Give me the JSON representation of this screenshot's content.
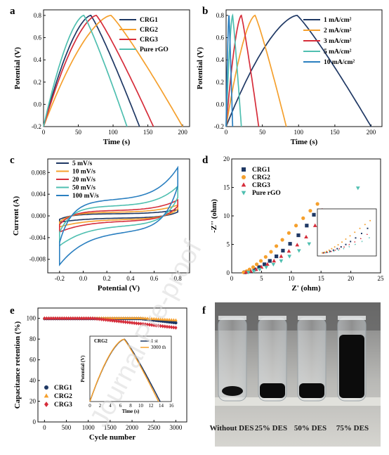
{
  "watermark": "Journal Pre-proof",
  "chart_data": [
    {
      "panel": "a",
      "type": "line",
      "xlabel": "Time (s)",
      "ylabel": "Potential (V)",
      "xlim": [
        0,
        210
      ],
      "ylim": [
        -0.2,
        0.85
      ],
      "xticks": [
        0,
        50,
        100,
        150,
        200
      ],
      "yticks": [
        -0.2,
        0.0,
        0.2,
        0.4,
        0.6,
        0.8
      ],
      "legend_position": "top-right",
      "series": [
        {
          "name": "CRG1",
          "color": "#1f3864",
          "charge_end": 68,
          "discharge_end": 138
        },
        {
          "name": "CRG2",
          "color": "#f5a02d",
          "charge_end": 97,
          "discharge_end": 200
        },
        {
          "name": "CRG3",
          "color": "#d62d3a",
          "charge_end": 76,
          "discharge_end": 158
        },
        {
          "name": "Pure rGO",
          "color": "#4fbfb0",
          "charge_end": 58,
          "discharge_end": 120
        }
      ]
    },
    {
      "panel": "b",
      "type": "line",
      "xlabel": "Time (s)",
      "ylabel": "Potential (V)",
      "xlim": [
        0,
        215
      ],
      "ylim": [
        -0.2,
        0.85
      ],
      "xticks": [
        0,
        50,
        100,
        150,
        200
      ],
      "yticks": [
        -0.2,
        0.0,
        0.2,
        0.4,
        0.6,
        0.8
      ],
      "legend_position": "top-right",
      "series": [
        {
          "name": "1 mA/cm²",
          "color": "#1f3864",
          "charge_end": 98,
          "discharge_end": 200
        },
        {
          "name": "2 mA/cm²",
          "color": "#f5a02d",
          "charge_end": 40,
          "discharge_end": 83
        },
        {
          "name": "3 mA/cm²",
          "color": "#d62d3a",
          "charge_end": 21,
          "discharge_end": 45
        },
        {
          "name": "5 mA/cm²",
          "color": "#4fbfb0",
          "charge_end": 9,
          "discharge_end": 21
        },
        {
          "name": "10 mA/cm²",
          "color": "#2a7fc0",
          "charge_end": 4,
          "discharge_end": 9
        }
      ]
    },
    {
      "panel": "c",
      "type": "line",
      "xlabel": "Potential (V)",
      "ylabel": "Current (A)",
      "xlim": [
        -0.3,
        0.9
      ],
      "ylim": [
        -0.0105,
        0.0105
      ],
      "xticks": [
        -0.2,
        0.0,
        0.2,
        0.4,
        0.6,
        0.8
      ],
      "yticks": [
        -0.008,
        -0.004,
        0.0,
        0.004,
        0.008
      ],
      "legend_position": "top-left",
      "series": [
        {
          "name": "5 mV/s",
          "color": "#1f3864",
          "i_max": 0.0011
        },
        {
          "name": "10 mV/s",
          "color": "#f5a02d",
          "i_max": 0.0019
        },
        {
          "name": "20 mV/s",
          "color": "#d62d3a",
          "i_max": 0.0028
        },
        {
          "name": "50 mV/s",
          "color": "#4fbfb0",
          "i_max": 0.0052
        },
        {
          "name": "100 mV/s",
          "color": "#2a7fc0",
          "i_max": 0.0085
        }
      ]
    },
    {
      "panel": "d",
      "type": "scatter",
      "xlabel": "Z' (ohm)",
      "ylabel": "-Z'' (ohm)",
      "xlim": [
        0,
        25
      ],
      "ylim": [
        0,
        20
      ],
      "xticks": [
        0,
        5,
        10,
        15,
        20,
        25
      ],
      "yticks": [
        0,
        5,
        10,
        15,
        20
      ],
      "legend_position": "top-left",
      "series": [
        {
          "name": "CRG1",
          "color": "#1f3864",
          "marker": "square",
          "x": [
            2.2,
            3.0,
            3.8,
            4.6,
            5.5,
            6.4,
            7.5,
            8.6,
            9.8,
            11.2,
            12.6,
            13.8
          ],
          "y": [
            0.1,
            0.3,
            0.6,
            1.0,
            1.5,
            2.1,
            2.9,
            3.9,
            5.1,
            6.6,
            8.3,
            10.2
          ]
        },
        {
          "name": "CRG2",
          "color": "#f5a02d",
          "marker": "circle",
          "x": [
            2.0,
            2.5,
            3.0,
            3.6,
            4.2,
            4.9,
            5.7,
            6.6,
            7.5,
            8.5,
            9.6,
            10.8,
            12.0,
            13.2,
            14.4
          ],
          "y": [
            0.1,
            0.3,
            0.6,
            1.0,
            1.5,
            2.1,
            2.8,
            3.7,
            4.7,
            5.8,
            7.0,
            8.3,
            9.6,
            10.9,
            12.1
          ]
        },
        {
          "name": "CRG3",
          "color": "#d62d3a",
          "marker": "triangle-up",
          "x": [
            2.4,
            3.2,
            4.1,
            5.0,
            6.0,
            7.1,
            8.3,
            9.6,
            11.0,
            12.5,
            14.0,
            15.2
          ],
          "y": [
            0.1,
            0.3,
            0.6,
            1.0,
            1.5,
            2.1,
            2.9,
            3.8,
            4.9,
            6.3,
            8.3,
            11.0
          ]
        },
        {
          "name": "Pure rGO",
          "color": "#4fbfb0",
          "marker": "triangle-down",
          "x": [
            2.8,
            3.7,
            4.7,
            5.8,
            7.0,
            8.3,
            9.7,
            11.3,
            13.0,
            15.0,
            17.1,
            21.2
          ],
          "y": [
            0.1,
            0.3,
            0.6,
            1.0,
            1.5,
            2.1,
            2.9,
            3.9,
            5.1,
            6.6,
            8.6,
            14.9
          ]
        }
      ]
    },
    {
      "panel": "e",
      "type": "scatter",
      "xlabel": "Cycle number",
      "ylabel": "Capacitance retention (%)",
      "xlim": [
        -150,
        3250
      ],
      "ylim": [
        0,
        110
      ],
      "xticks": [
        0,
        500,
        1000,
        1500,
        2000,
        2500,
        3000
      ],
      "yticks": [
        0,
        20,
        40,
        60,
        80,
        100
      ],
      "legend_position": "bottom-left",
      "series": [
        {
          "name": "CRG1",
          "color": "#1f3864",
          "marker": "circle",
          "end_value": 96
        },
        {
          "name": "CRG2",
          "color": "#f5a02d",
          "marker": "triangle-up",
          "end_value": 98
        },
        {
          "name": "CRG3",
          "color": "#d62d3a",
          "marker": "diamond",
          "end_value": 91
        }
      ],
      "inset": {
        "label": "CRG2",
        "xlabel": "Time (s)",
        "ylabel": "Potential (V)",
        "xticks": [
          0,
          2,
          4,
          6,
          8,
          10,
          12,
          14,
          16
        ],
        "series": [
          {
            "name": "1 st",
            "color": "#1f3864",
            "charge_end": 6.8,
            "discharge_end": 13.8
          },
          {
            "name": "3000 th",
            "color": "#f5a02d",
            "charge_end": 6.7,
            "discharge_end": 13.5
          }
        ]
      }
    }
  ],
  "photo": {
    "panel": "f",
    "labels": [
      "Without DES",
      "25% DES",
      "50% DES",
      "75% DES"
    ]
  }
}
